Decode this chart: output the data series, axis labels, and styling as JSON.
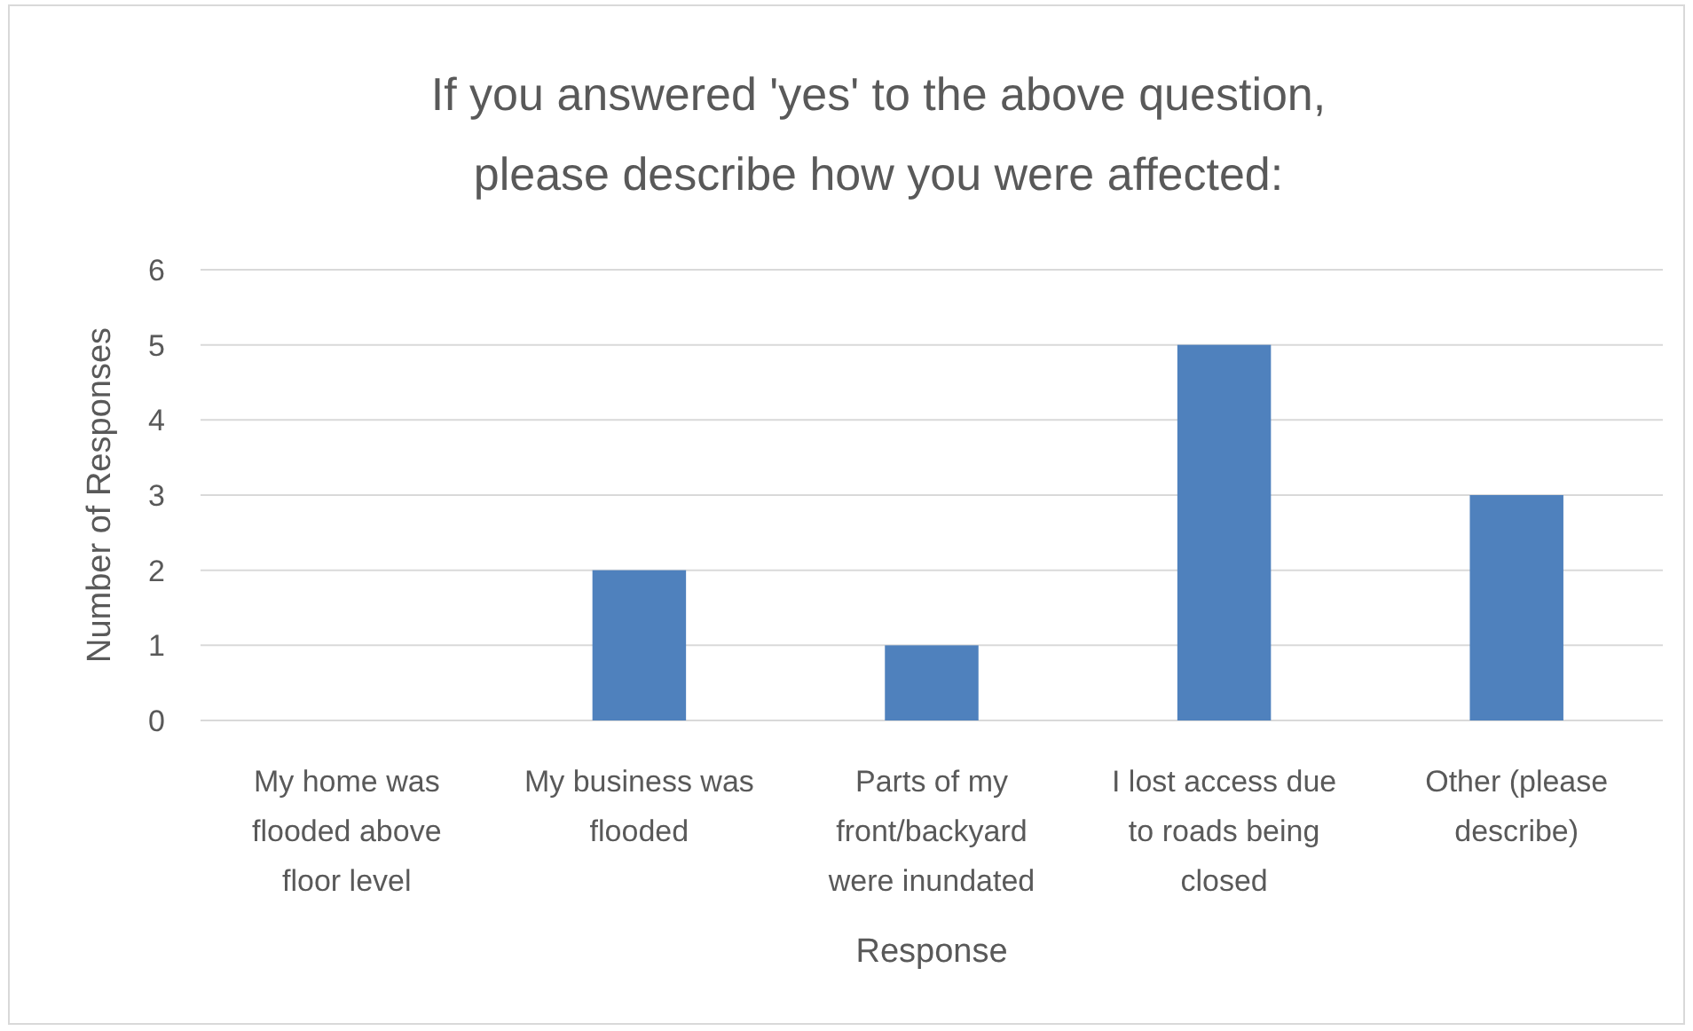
{
  "chart_data": {
    "type": "bar",
    "title": "If you answered 'yes' to the above question, please describe how you were affected:",
    "xlabel": "Response",
    "ylabel": "Number of Responses",
    "categories": [
      "My home was flooded above floor level",
      "My business was flooded",
      "Parts of my front/backyard were inundated",
      "I lost access due to roads being closed",
      "Other (please describe)"
    ],
    "values": [
      0,
      2,
      1,
      5,
      3
    ],
    "color": "#4f81bd",
    "ylim": [
      0,
      6
    ],
    "yticks": [
      0,
      1,
      2,
      3,
      4,
      5,
      6
    ],
    "grid": "y"
  }
}
